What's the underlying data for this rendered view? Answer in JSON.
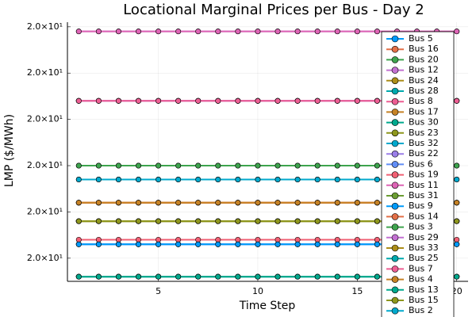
{
  "chart_data": {
    "type": "line",
    "title": "Locational Marginal Prices per Bus - Day 2",
    "x_label": "Time Step",
    "y_label": "LMP ($/MWh)",
    "x": [
      1,
      2,
      3,
      4,
      5,
      6,
      7,
      8,
      9,
      10,
      11,
      12,
      13,
      14,
      15,
      16,
      17,
      18,
      19,
      20
    ],
    "xlim": [
      0.43,
      20.57
    ],
    "xticks": [
      5,
      10,
      15,
      20
    ],
    "ylim": [
      19.9999955,
      20.0000011
    ],
    "yticks": [
      {
        "value": 19.999996,
        "label": "2.0×10¹"
      },
      {
        "value": 19.999997,
        "label": "2.0×10¹"
      },
      {
        "value": 19.999998,
        "label": "2.0×10¹"
      },
      {
        "value": 19.999999,
        "label": "2.0×10¹"
      },
      {
        "value": 20.0,
        "label": "2.0×10¹"
      },
      {
        "value": 20.000001,
        "label": "2.0×10¹"
      }
    ],
    "grid": true,
    "legend": "top right",
    "series": [
      {
        "name": "Bus 5",
        "color": "#009AFA",
        "values": [
          19.9999963,
          19.9999963,
          19.9999963,
          19.9999963,
          19.9999963,
          19.9999963,
          19.9999963,
          19.9999963,
          19.9999963,
          19.9999963,
          19.9999963,
          19.9999963,
          19.9999963,
          19.9999963,
          19.9999963,
          19.9999963,
          19.9999963,
          19.9999963,
          19.9999963,
          19.9999963
        ]
      },
      {
        "name": "Bus 16",
        "color": "#E36F47",
        "values": [
          19.9999972,
          19.9999972,
          19.9999972,
          19.9999972,
          19.9999972,
          19.9999972,
          19.9999972,
          19.9999972,
          19.9999972,
          19.9999972,
          19.9999972,
          19.9999972,
          19.9999972,
          19.9999972,
          19.9999972,
          19.9999972,
          19.9999972,
          19.9999972,
          19.9999972,
          19.9999972
        ]
      },
      {
        "name": "Bus 20",
        "color": "#3EA44E",
        "values": [
          19.999998,
          19.999998,
          19.999998,
          19.999998,
          19.999998,
          19.999998,
          19.999998,
          19.999998,
          19.999998,
          19.999998,
          19.999998,
          19.999998,
          19.999998,
          19.999998,
          19.999998,
          19.999998,
          19.999998,
          19.999998,
          19.999998,
          19.999998
        ]
      },
      {
        "name": "Bus 12",
        "color": "#C371D2",
        "values": [
          20.0000009,
          20.0000009,
          20.0000009,
          20.0000009,
          20.0000009,
          20.0000009,
          20.0000009,
          20.0000009,
          20.0000009,
          20.0000009,
          20.0000009,
          20.0000009,
          20.0000009,
          20.0000009,
          20.0000009,
          20.0000009,
          20.0000009,
          20.0000009,
          20.0000009,
          20.0000009
        ]
      },
      {
        "name": "Bus 24",
        "color": "#AC8D18",
        "values": [
          19.9999968,
          19.9999968,
          19.9999968,
          19.9999968,
          19.9999968,
          19.9999968,
          19.9999968,
          19.9999968,
          19.9999968,
          19.9999968,
          19.9999968,
          19.9999968,
          19.9999968,
          19.9999968,
          19.9999968,
          19.9999968,
          19.9999968,
          19.9999968,
          19.9999968,
          19.9999968
        ]
      },
      {
        "name": "Bus 28",
        "color": "#00A9AD",
        "values": [
          19.9999956,
          19.9999956,
          19.9999956,
          19.9999956,
          19.9999956,
          19.9999956,
          19.9999956,
          19.9999956,
          19.9999956,
          19.9999956,
          19.9999956,
          19.9999956,
          19.9999956,
          19.9999956,
          19.9999956,
          19.9999956,
          19.9999956,
          19.9999956,
          19.9999956,
          19.9999956
        ]
      },
      {
        "name": "Bus 8",
        "color": "#ED5E93",
        "values": [
          19.9999994,
          19.9999994,
          19.9999994,
          19.9999994,
          19.9999994,
          19.9999994,
          19.9999994,
          19.9999994,
          19.9999994,
          19.9999994,
          19.9999994,
          19.9999994,
          19.9999994,
          19.9999994,
          19.9999994,
          19.9999994,
          19.9999994,
          19.9999994,
          19.9999994,
          19.9999994
        ]
      },
      {
        "name": "Bus 17",
        "color": "#C68225",
        "values": [
          19.9999972,
          19.9999972,
          19.9999972,
          19.9999972,
          19.9999972,
          19.9999972,
          19.9999972,
          19.9999972,
          19.9999972,
          19.9999972,
          19.9999972,
          19.9999972,
          19.9999972,
          19.9999972,
          19.9999972,
          19.9999972,
          19.9999972,
          19.9999972,
          19.9999972,
          19.9999972
        ]
      },
      {
        "name": "Bus 30",
        "color": "#00A98D",
        "values": [
          19.9999956,
          19.9999956,
          19.9999956,
          19.9999956,
          19.9999956,
          19.9999956,
          19.9999956,
          19.9999956,
          19.9999956,
          19.9999956,
          19.9999956,
          19.9999956,
          19.9999956,
          19.9999956,
          19.9999956,
          19.9999956,
          19.9999956,
          19.9999956,
          19.9999956,
          19.9999956
        ]
      },
      {
        "name": "Bus 23",
        "color": "#8E971D",
        "values": [
          19.9999968,
          19.9999968,
          19.9999968,
          19.9999968,
          19.9999968,
          19.9999968,
          19.9999968,
          19.9999968,
          19.9999968,
          19.9999968,
          19.9999968,
          19.9999968,
          19.9999968,
          19.9999968,
          19.9999968,
          19.9999968,
          19.9999968,
          19.9999968,
          19.9999968,
          19.9999968
        ]
      },
      {
        "name": "Bus 32",
        "color": "#00A9CD",
        "values": [
          19.9999977,
          19.9999977,
          19.9999977,
          19.9999977,
          19.9999977,
          19.9999977,
          19.9999977,
          19.9999977,
          19.9999977,
          19.9999977,
          19.9999977,
          19.9999977,
          19.9999977,
          19.9999977,
          19.9999977,
          19.9999977,
          19.9999977,
          19.9999977,
          19.9999977,
          19.9999977
        ]
      },
      {
        "name": "Bus 22",
        "color": "#9B7FE8",
        "values": [
          19.9999994,
          19.9999994,
          19.9999994,
          19.9999994,
          19.9999994,
          19.9999994,
          19.9999994,
          19.9999994,
          19.9999994,
          19.9999994,
          19.9999994,
          19.9999994,
          19.9999994,
          19.9999994,
          19.9999994,
          19.9999994,
          19.9999994,
          19.9999994,
          19.9999994,
          19.9999994
        ]
      },
      {
        "name": "Bus 6",
        "color": "#618DF6",
        "values": [
          19.9999963,
          19.9999963,
          19.9999963,
          19.9999963,
          19.9999963,
          19.9999963,
          19.9999963,
          19.9999963,
          19.9999963,
          19.9999963,
          19.9999963,
          19.9999963,
          19.9999963,
          19.9999963,
          19.9999963,
          19.9999963,
          19.9999963,
          19.9999963,
          19.9999963,
          19.9999963
        ]
      },
      {
        "name": "Bus 19",
        "color": "#F05F73",
        "values": [
          19.9999964,
          19.9999964,
          19.9999964,
          19.9999964,
          19.9999964,
          19.9999964,
          19.9999964,
          19.9999964,
          19.9999964,
          19.9999964,
          19.9999964,
          19.9999964,
          19.9999964,
          19.9999964,
          19.9999964,
          19.9999964,
          19.9999964,
          19.9999964,
          19.9999964,
          19.9999964
        ]
      },
      {
        "name": "Bus 11",
        "color": "#DD64B5",
        "values": [
          20.0000009,
          20.0000009,
          20.0000009,
          20.0000009,
          20.0000009,
          20.0000009,
          20.0000009,
          20.0000009,
          20.0000009,
          20.0000009,
          20.0000009,
          20.0000009,
          20.0000009,
          20.0000009,
          20.0000009,
          20.0000009,
          20.0000009,
          20.0000009,
          20.0000009,
          20.0000009
        ]
      },
      {
        "name": "Bus 31",
        "color": "#6B9D32",
        "values": [
          19.9999968,
          19.9999968,
          19.9999968,
          19.9999968,
          19.9999968,
          19.9999968,
          19.9999968,
          19.9999968,
          19.9999968,
          19.9999968,
          19.9999968,
          19.9999968,
          19.9999968,
          19.9999968,
          19.9999968,
          19.9999968,
          19.9999968,
          19.9999968,
          19.9999968,
          19.9999968
        ]
      },
      {
        "name": "Bus 9",
        "color": "#009AFA",
        "values": [
          19.9999963,
          19.9999963,
          19.9999963,
          19.9999963,
          19.9999963,
          19.9999963,
          19.9999963,
          19.9999963,
          19.9999963,
          19.9999963,
          19.9999963,
          19.9999963,
          19.9999963,
          19.9999963,
          19.9999963,
          19.9999963,
          19.9999963,
          19.9999963,
          19.9999963,
          19.9999963
        ]
      },
      {
        "name": "Bus 14",
        "color": "#E36F47",
        "values": [
          19.9999972,
          19.9999972,
          19.9999972,
          19.9999972,
          19.9999972,
          19.9999972,
          19.9999972,
          19.9999972,
          19.9999972,
          19.9999972,
          19.9999972,
          19.9999972,
          19.9999972,
          19.9999972,
          19.9999972,
          19.9999972,
          19.9999972,
          19.9999972,
          19.9999972,
          19.9999972
        ]
      },
      {
        "name": "Bus 3",
        "color": "#3EA44E",
        "values": [
          19.999998,
          19.999998,
          19.999998,
          19.999998,
          19.999998,
          19.999998,
          19.999998,
          19.999998,
          19.999998,
          19.999998,
          19.999998,
          19.999998,
          19.999998,
          19.999998,
          19.999998,
          19.999998,
          19.999998,
          19.999998,
          19.999998,
          19.999998
        ]
      },
      {
        "name": "Bus 29",
        "color": "#C371D2",
        "values": [
          19.9999994,
          19.9999994,
          19.9999994,
          19.9999994,
          19.9999994,
          19.9999994,
          19.9999994,
          19.9999994,
          19.9999994,
          19.9999994,
          19.9999994,
          19.9999994,
          19.9999994,
          19.9999994,
          19.9999994,
          19.9999994,
          19.9999994,
          19.9999994,
          19.9999994,
          19.9999994
        ]
      },
      {
        "name": "Bus 33",
        "color": "#AC8D18",
        "values": [
          19.9999968,
          19.9999968,
          19.9999968,
          19.9999968,
          19.9999968,
          19.9999968,
          19.9999968,
          19.9999968,
          19.9999968,
          19.9999968,
          19.9999968,
          19.9999968,
          19.9999968,
          19.9999968,
          19.9999968,
          19.9999968,
          19.9999968,
          19.9999968,
          19.9999968,
          19.9999968
        ]
      },
      {
        "name": "Bus 25",
        "color": "#00A9AD",
        "values": [
          19.9999956,
          19.9999956,
          19.9999956,
          19.9999956,
          19.9999956,
          19.9999956,
          19.9999956,
          19.9999956,
          19.9999956,
          19.9999956,
          19.9999956,
          19.9999956,
          19.9999956,
          19.9999956,
          19.9999956,
          19.9999956,
          19.9999956,
          19.9999956,
          19.9999956,
          19.9999956
        ]
      },
      {
        "name": "Bus 7",
        "color": "#ED5E93",
        "values": [
          19.9999994,
          19.9999994,
          19.9999994,
          19.9999994,
          19.9999994,
          19.9999994,
          19.9999994,
          19.9999994,
          19.9999994,
          19.9999994,
          19.9999994,
          19.9999994,
          19.9999994,
          19.9999994,
          19.9999994,
          19.9999994,
          19.9999994,
          19.9999994,
          19.9999994,
          19.9999994
        ]
      },
      {
        "name": "Bus 4",
        "color": "#C68225",
        "values": [
          19.9999972,
          19.9999972,
          19.9999972,
          19.9999972,
          19.9999972,
          19.9999972,
          19.9999972,
          19.9999972,
          19.9999972,
          19.9999972,
          19.9999972,
          19.9999972,
          19.9999972,
          19.9999972,
          19.9999972,
          19.9999972,
          19.9999972,
          19.9999972,
          19.9999972,
          19.9999972
        ]
      },
      {
        "name": "Bus 13",
        "color": "#00A98D",
        "values": [
          19.9999956,
          19.9999956,
          19.9999956,
          19.9999956,
          19.9999956,
          19.9999956,
          19.9999956,
          19.9999956,
          19.9999956,
          19.9999956,
          19.9999956,
          19.9999956,
          19.9999956,
          19.9999956,
          19.9999956,
          19.9999956,
          19.9999956,
          19.9999956,
          19.9999956,
          19.9999956
        ]
      },
      {
        "name": "Bus 15",
        "color": "#8E971D",
        "values": [
          19.9999968,
          19.9999968,
          19.9999968,
          19.9999968,
          19.9999968,
          19.9999968,
          19.9999968,
          19.9999968,
          19.9999968,
          19.9999968,
          19.9999968,
          19.9999968,
          19.9999968,
          19.9999968,
          19.9999968,
          19.9999968,
          19.9999968,
          19.9999968,
          19.9999968,
          19.9999968
        ]
      },
      {
        "name": "Bus 2",
        "color": "#00A9CD",
        "values": [
          19.9999977,
          19.9999977,
          19.9999977,
          19.9999977,
          19.9999977,
          19.9999977,
          19.9999977,
          19.9999977,
          19.9999977,
          19.9999977,
          19.9999977,
          19.9999977,
          19.9999977,
          19.9999977,
          19.9999977,
          19.9999977,
          19.9999977,
          19.9999977,
          19.9999977,
          19.9999977
        ]
      }
    ]
  }
}
